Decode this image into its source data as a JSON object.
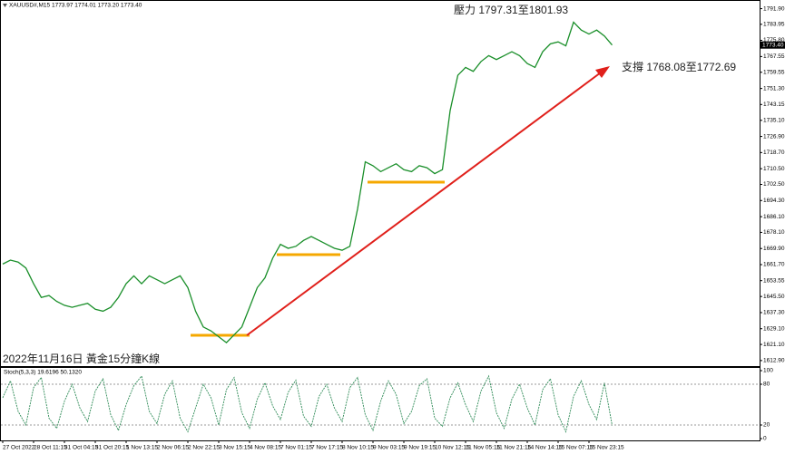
{
  "chart_data": [
    {
      "type": "line",
      "title": "XAUUSD#,M15 1773.97 1774.01 1773.20 1773.40",
      "annotations": [
        "壓力 1797.31至1801.93",
        "支撐 1768.08至1772.69",
        "2022年11月16日 黃金15分鐘K線"
      ],
      "categories": [
        "27 Oct 2022",
        null,
        null,
        null,
        "28 Oct 11:15",
        null,
        null,
        null,
        "31 Oct 04:15",
        null,
        null,
        null,
        "31 Oct 20:15",
        null,
        null,
        null,
        "1 Nov 13:15",
        null,
        null,
        null,
        "2 Nov 06:15",
        null,
        null,
        null,
        "2 Nov 22:15",
        null,
        null,
        null,
        "3 Nov 15:15",
        null,
        null,
        null,
        "4 Nov 08:15",
        null,
        null,
        null,
        "7 Nov 01:15",
        null,
        null,
        null,
        "7 Nov 17:15",
        null,
        null,
        null,
        "8 Nov 10:15",
        null,
        null,
        null,
        "9 Nov 03:15",
        null,
        null,
        null,
        "9 Nov 19:15",
        null,
        null,
        null,
        "10 Nov 12:15",
        null,
        null,
        null,
        "11 Nov 05:15",
        null,
        null,
        null,
        "11 Nov 21:15",
        null,
        null,
        null,
        "14 Nov 14:15",
        null,
        null,
        null,
        "15 Nov 07:15",
        null,
        null,
        null,
        "15 Nov 23:15",
        null,
        null,
        null
      ],
      "values": [
        1662,
        1664,
        1663,
        1660,
        1652,
        1645,
        1646,
        1643,
        1641,
        1640,
        1641,
        1642,
        1639,
        1638,
        1640,
        1645,
        1652,
        1656,
        1652,
        1656,
        1654,
        1652,
        1654,
        1656,
        1650,
        1638,
        1630,
        1628,
        1625,
        1622,
        1626,
        1630,
        1640,
        1650,
        1655,
        1665,
        1672,
        1670,
        1671,
        1674,
        1676,
        1674,
        1672,
        1670,
        1669,
        1671,
        1690,
        1714,
        1712,
        1709,
        1711,
        1713,
        1710,
        1709,
        1712,
        1711,
        1708,
        1710,
        1740,
        1758,
        1762,
        1760,
        1765,
        1768,
        1766,
        1768,
        1770,
        1768,
        1764,
        1762,
        1770,
        1774,
        1775,
        1773,
        1785,
        1781,
        1779,
        1781,
        1778,
        1773.4
      ],
      "color": "#1a8f2a",
      "price_marker": {
        "value": 1773.4,
        "label": "1773.40"
      },
      "ylim": [
        1611,
        1794
      ],
      "yticks": [
        {
          "value": 1791.9,
          "label": "1791.90"
        },
        {
          "value": 1783.95,
          "label": "1783.95"
        },
        {
          "value": 1775.8,
          "label": "1775.80"
        },
        {
          "value": 1767.55,
          "label": "1767.55"
        },
        {
          "value": 1759.55,
          "label": "1759.55"
        },
        {
          "value": 1751.3,
          "label": "1751.30"
        },
        {
          "value": 1743.15,
          "label": "1743.15"
        },
        {
          "value": 1735.1,
          "label": "1735.10"
        },
        {
          "value": 1726.9,
          "label": "1726.90"
        },
        {
          "value": 1718.7,
          "label": "1718.70"
        },
        {
          "value": 1710.5,
          "label": "1710.50"
        },
        {
          "value": 1702.5,
          "label": "1702.50"
        },
        {
          "value": 1694.3,
          "label": "1694.30"
        },
        {
          "value": 1686.1,
          "label": "1686.10"
        },
        {
          "value": 1678.1,
          "label": "1678.10"
        },
        {
          "value": 1669.9,
          "label": "1669.90"
        },
        {
          "value": 1661.7,
          "label": "1661.70"
        },
        {
          "value": 1653.55,
          "label": "1653.55"
        },
        {
          "value": 1645.5,
          "label": "1645.50"
        },
        {
          "value": 1637.3,
          "label": "1637.30"
        },
        {
          "value": 1629.1,
          "label": "1629.10"
        },
        {
          "value": 1621.1,
          "label": "1621.10"
        },
        {
          "value": 1612.9,
          "label": "1612.90"
        }
      ]
    },
    {
      "type": "line",
      "title": "Stoch(5,3,3) 19.6196 50.1320",
      "values": [
        60,
        85,
        40,
        20,
        75,
        90,
        30,
        15,
        55,
        80,
        45,
        25,
        70,
        88,
        35,
        12,
        50,
        78,
        92,
        40,
        22,
        65,
        85,
        30,
        10,
        45,
        80,
        60,
        20,
        72,
        90,
        38,
        15,
        58,
        82,
        48,
        28,
        68,
        86,
        33,
        18,
        62,
        80,
        45,
        25,
        75,
        90,
        35,
        12,
        55,
        85,
        65,
        22,
        40,
        78,
        88,
        30,
        18,
        60,
        82,
        50,
        25,
        70,
        92,
        38,
        15,
        58,
        80,
        45,
        20,
        72,
        88,
        35,
        10,
        62,
        85,
        50,
        28,
        82,
        19.6196
      ],
      "color": "#2e8b57",
      "ylim": [
        0,
        100
      ],
      "yticks": [
        100,
        80,
        20,
        0
      ]
    }
  ]
}
